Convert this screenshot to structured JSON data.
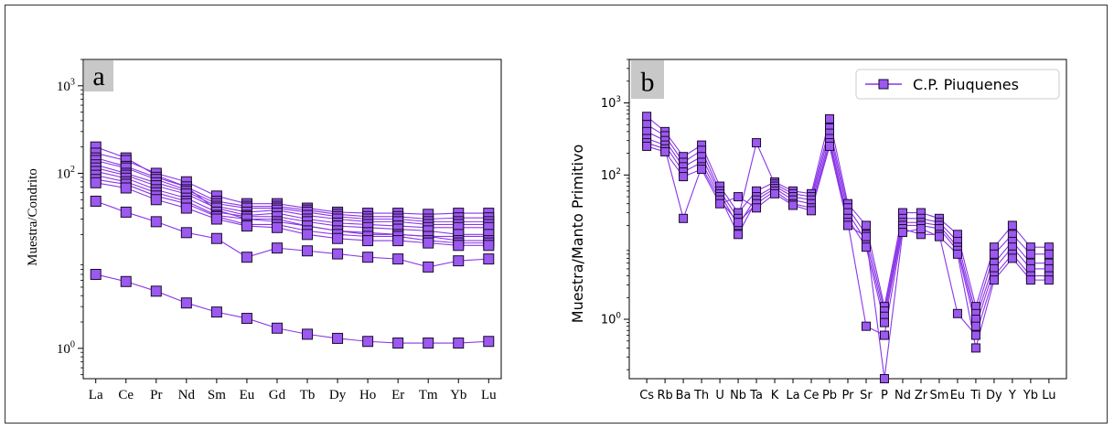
{
  "colors": {
    "series": "#8a35e8",
    "marker_face": "#9b59f0",
    "marker_edge": "#1a0a2a",
    "panel_label_bg": "#c8c8c8"
  },
  "chart_data": [
    {
      "type": "line",
      "panel_label": "a",
      "title": "",
      "xlabel": "",
      "ylabel": "Muestra/Condrito",
      "yscale": "log",
      "ylim": [
        0.45,
        2000
      ],
      "yticks": [
        {
          "value": 1,
          "base": "10",
          "exp": "0"
        },
        {
          "value": 100,
          "base": "10",
          "exp": "2"
        },
        {
          "value": 1000,
          "base": "10",
          "exp": "3"
        }
      ],
      "grid": false,
      "legend": "none",
      "categories": [
        "La",
        "Ce",
        "Pr",
        "Nd",
        "Sm",
        "Eu",
        "Gd",
        "Tb",
        "Dy",
        "Ho",
        "Er",
        "Tm",
        "Yb",
        "Lu"
      ],
      "series": [
        {
          "values": [
            200,
            150,
            95,
            70,
            38,
            30,
            30,
            25,
            22,
            20,
            20,
            19,
            19,
            19
          ]
        },
        {
          "values": [
            170,
            140,
            100,
            80,
            55,
            45,
            45,
            40,
            36,
            35,
            35,
            34,
            35,
            35
          ]
        },
        {
          "values": [
            150,
            120,
            90,
            70,
            48,
            42,
            42,
            38,
            34,
            32,
            32,
            30,
            31,
            31
          ]
        },
        {
          "values": [
            140,
            115,
            85,
            65,
            45,
            40,
            40,
            36,
            32,
            30,
            30,
            28,
            28,
            28
          ]
        },
        {
          "values": [
            125,
            100,
            78,
            62,
            42,
            36,
            38,
            33,
            30,
            28,
            28,
            26,
            26,
            26
          ]
        },
        {
          "values": [
            115,
            95,
            72,
            58,
            40,
            33,
            35,
            30,
            27,
            26,
            25,
            24,
            24,
            24
          ]
        },
        {
          "values": [
            105,
            88,
            65,
            52,
            36,
            32,
            32,
            28,
            25,
            24,
            23,
            22,
            20,
            20
          ]
        },
        {
          "values": [
            95,
            80,
            60,
            48,
            33,
            30,
            28,
            25,
            22,
            21,
            20,
            19,
            17,
            17
          ]
        },
        {
          "values": [
            85,
            75,
            55,
            45,
            32,
            26,
            26,
            22,
            20,
            19,
            19,
            17,
            16,
            16
          ]
        },
        {
          "values": [
            78,
            68,
            50,
            40,
            30,
            25,
            24,
            20,
            18,
            17,
            17,
            16,
            15,
            15
          ]
        },
        {
          "values": [
            48,
            36,
            28,
            21,
            18,
            11,
            14,
            13,
            12,
            11,
            10.5,
            8.5,
            10,
            10.5
          ]
        },
        {
          "values": [
            7,
            5.8,
            4.5,
            3.3,
            2.6,
            2.2,
            1.7,
            1.45,
            1.3,
            1.2,
            1.15,
            1.15,
            1.15,
            1.2
          ]
        }
      ]
    },
    {
      "type": "line",
      "panel_label": "b",
      "title": "",
      "xlabel": "",
      "ylabel": "Muestra/Manto Primitivo",
      "yscale": "log",
      "ylim": [
        0.15,
        4000
      ],
      "yticks": [
        {
          "value": 1,
          "base": "10",
          "exp": "0"
        },
        {
          "value": 100,
          "base": "10",
          "exp": "2"
        },
        {
          "value": 1000,
          "base": "10",
          "exp": "3"
        }
      ],
      "grid": false,
      "legend": "top-right",
      "categories": [
        "Cs",
        "Rb",
        "Ba",
        "Th",
        "U",
        "Nb",
        "Ta",
        "K",
        "La",
        "Ce",
        "Pb",
        "Pr",
        "Sr",
        "P",
        "Nd",
        "Zr",
        "Sm",
        "Eu",
        "Ti",
        "Dy",
        "Y",
        "Yb",
        "Lu"
      ],
      "series": [
        {
          "name": "C.P. Piuquenes",
          "values": [
            650,
            400,
            180,
            260,
            70,
            30,
            60,
            80,
            60,
            55,
            600,
            40,
            20,
            1.5,
            30,
            30,
            25,
            15,
            1.5,
            10,
            20,
            10,
            10
          ]
        },
        {
          "values": [
            500,
            350,
            150,
            220,
            60,
            25,
            280,
            75,
            55,
            50,
            450,
            35,
            15,
            1.3,
            25,
            25,
            22,
            12,
            1.2,
            8,
            15,
            8,
            8
          ]
        },
        {
          "values": [
            400,
            300,
            130,
            180,
            55,
            20,
            50,
            70,
            50,
            45,
            380,
            30,
            12,
            1.1,
            22,
            22,
            20,
            10,
            1.0,
            6,
            12,
            6,
            6
          ]
        },
        {
          "values": [
            320,
            260,
            110,
            150,
            50,
            15,
            45,
            65,
            45,
            40,
            320,
            25,
            10,
            0.9,
            20,
            20,
            18,
            9,
            0.8,
            5,
            10,
            5,
            5
          ]
        },
        {
          "values": [
            280,
            230,
            25,
            130,
            45,
            22,
            40,
            60,
            40,
            35,
            280,
            22,
            0.8,
            0.6,
            18,
            15,
            15,
            1.2,
            0.6,
            4,
            8,
            4,
            4
          ]
        },
        {
          "values": [
            250,
            210,
            95,
            120,
            40,
            50,
            35,
            55,
            38,
            32,
            250,
            20,
            14,
            0.15,
            16,
            18,
            14,
            8,
            0.4,
            3.5,
            7,
            3.5,
            3.5
          ]
        }
      ]
    }
  ]
}
